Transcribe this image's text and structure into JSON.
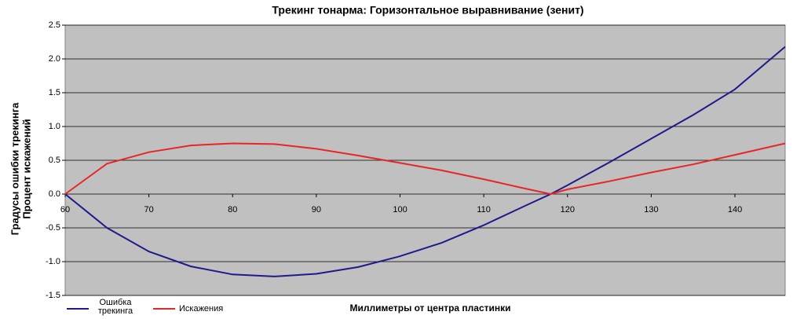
{
  "chart_data": {
    "type": "line",
    "title": "Трекинг тонарма: Горизонтальное выравнивание (зенит)",
    "x_label": "Миллиметры от центра пластинки",
    "y_label": [
      "Градусы ошибки трекинга",
      "Процент искажений"
    ],
    "x": [
      60,
      65,
      70,
      75,
      80,
      85,
      90,
      95,
      100,
      105,
      110,
      115,
      118,
      120,
      125,
      130,
      135,
      140,
      146
    ],
    "series": [
      {
        "name": "Ошибка трекинга",
        "color": "#1f1a8c",
        "values": [
          0,
          -0.5,
          -0.85,
          -1.07,
          -1.19,
          -1.22,
          -1.18,
          -1.08,
          -0.92,
          -0.72,
          -0.46,
          -0.17,
          0,
          0.13,
          0.47,
          0.82,
          1.17,
          1.55,
          2.18
        ]
      },
      {
        "name": "Искажения",
        "color": "#e8262a",
        "values": [
          0,
          0.45,
          0.62,
          0.72,
          0.75,
          0.74,
          0.67,
          0.57,
          0.46,
          0.35,
          0.22,
          0.08,
          0,
          0.07,
          0.19,
          0.32,
          0.44,
          0.58,
          0.75
        ]
      }
    ],
    "xlim": [
      60,
      146
    ],
    "xticks": [
      60,
      70,
      80,
      90,
      100,
      110,
      120,
      130,
      140
    ],
    "ylim": [
      -1.5,
      2.5
    ],
    "yticks": [
      -1.5,
      {
        "value": -1,
        "label": "-1.0"
      },
      -0.5,
      {
        "value": 0,
        "label": "0.0"
      },
      0.5,
      {
        "value": 1,
        "label": "1.0"
      },
      1.5,
      {
        "value": 2,
        "label": "2.0"
      },
      2.5
    ],
    "grid": true,
    "plot_background": "#c0c0c0"
  }
}
